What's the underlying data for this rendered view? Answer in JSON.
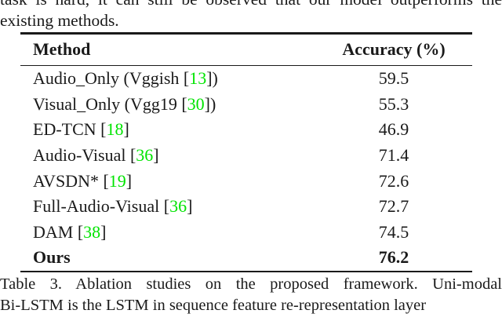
{
  "top_paragraph": {
    "line1_clipped": "task is hard, it can still be observed that our model outperforms the",
    "line2": "existing methods."
  },
  "table": {
    "header": {
      "method": "Method",
      "accuracy": "Accuracy (%)"
    },
    "rows": [
      {
        "pre": "Audio_Only (Vggish [",
        "cite": "13",
        "post": "])",
        "value": "59.5"
      },
      {
        "pre": "Visual_Only (Vgg19 [",
        "cite": "30",
        "post": "])",
        "value": "55.3"
      },
      {
        "pre": "ED-TCN [",
        "cite": "18",
        "post": "]",
        "value": "46.9"
      },
      {
        "pre": "Audio-Visual [",
        "cite": "36",
        "post": "]",
        "value": "71.4"
      },
      {
        "pre": "AVSDN* [",
        "cite": "19",
        "post": "]",
        "value": "72.6"
      },
      {
        "pre": "Full-Audio-Visual [",
        "cite": "36",
        "post": "]",
        "value": "72.7"
      },
      {
        "pre": "DAM [",
        "cite": "38",
        "post": "]",
        "value": "74.5"
      },
      {
        "pre": "Ours",
        "cite": "",
        "post": "",
        "value": "76.2"
      }
    ]
  },
  "caption": {
    "line1": "Table 3. Ablation studies on the proposed framework.  Uni-modal",
    "line2": "Bi-LSTM is the LSTM in sequence feature re-representation layer"
  },
  "colors": {
    "citation_green": "#00E400",
    "text": "#1a1a1a"
  }
}
